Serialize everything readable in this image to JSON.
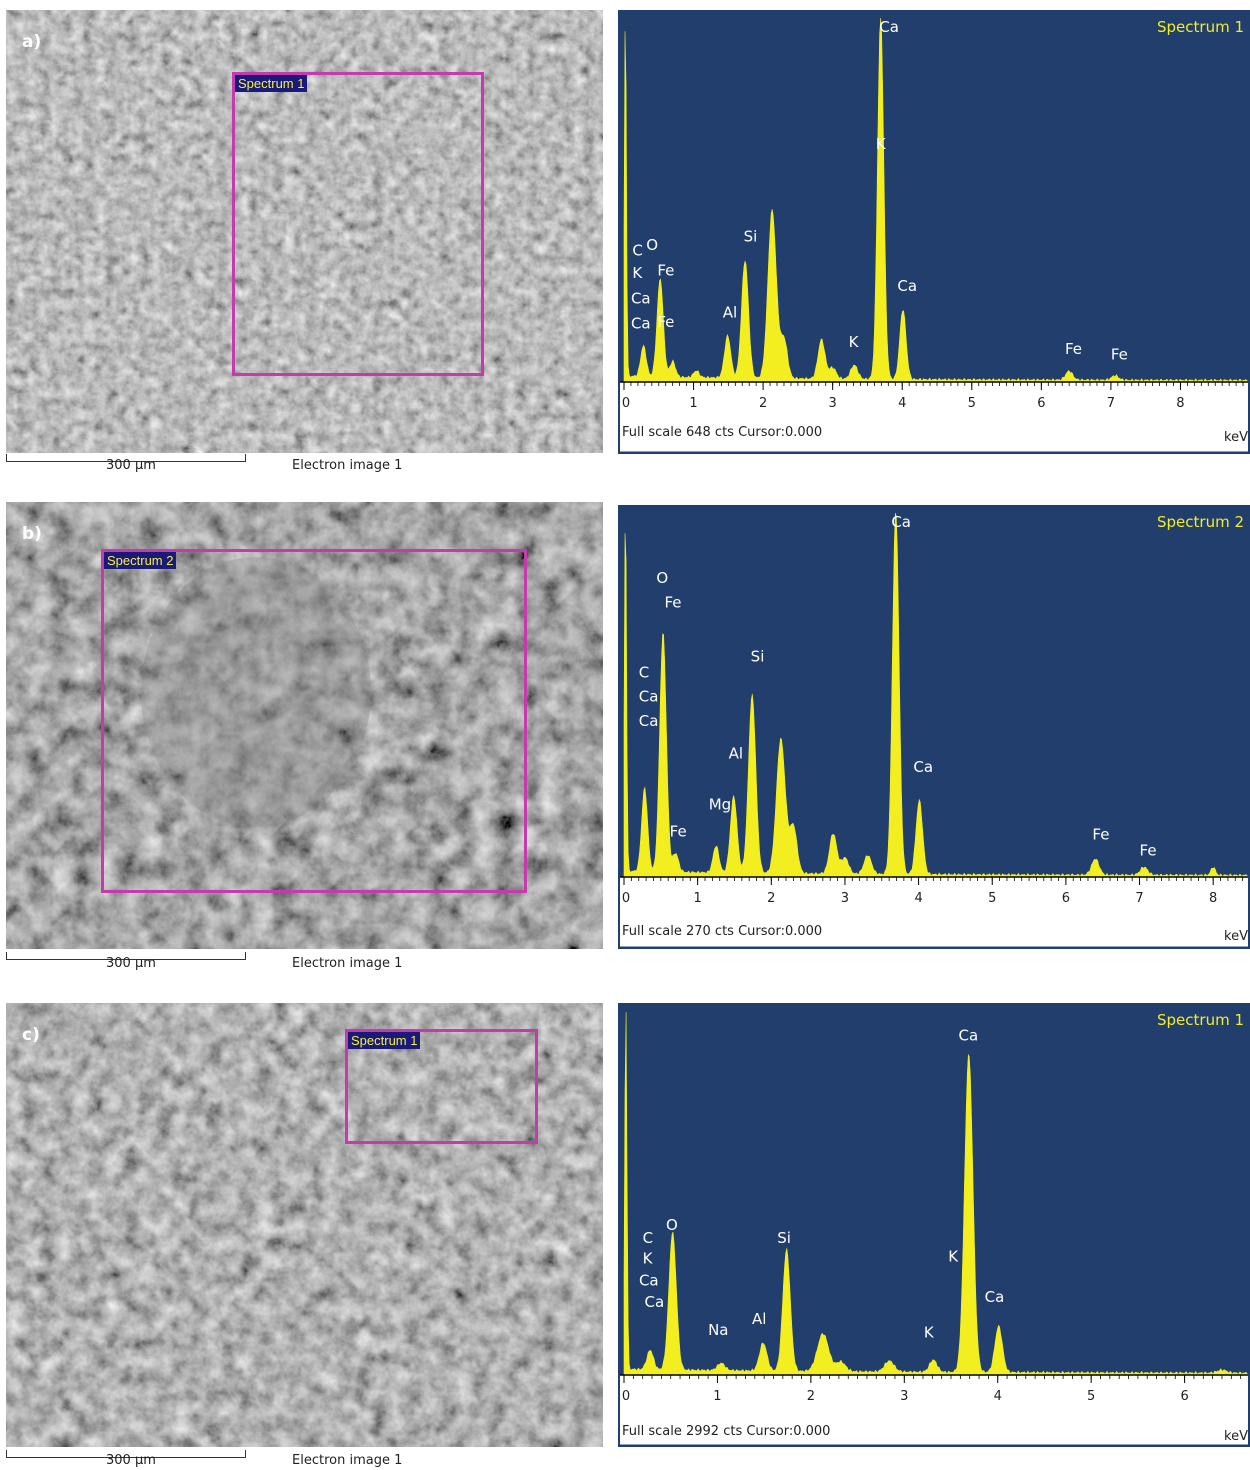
{
  "panels": [
    {
      "letter": "a)",
      "box_label": "Spectrum 1",
      "scale_label": "300 µm",
      "image_label": "Electron image 1"
    },
    {
      "letter": "b)",
      "box_label": "Spectrum 2",
      "scale_label": "300 µm",
      "image_label": "Electron image 1"
    },
    {
      "letter": "c)",
      "box_label": "Spectrum 1",
      "scale_label": "300 µm",
      "image_label": "Electron image 1"
    }
  ],
  "colors": {
    "spectrum_bg": "#213e6d",
    "spectrum_fill": "#f2ee1f",
    "roi_box": "#c23cb0",
    "spectrum_title": "#f2ee1f"
  },
  "chart_data": [
    {
      "type": "area",
      "title": "Spectrum 1",
      "footer": "Full scale 648 cts Cursor:0.000",
      "xunit": "keV",
      "xlim": [
        0,
        9
      ],
      "ylim": [
        0,
        648
      ],
      "xticks": [
        0,
        1,
        2,
        3,
        4,
        5,
        6,
        7,
        8
      ],
      "peaks": [
        {
          "x": 0.02,
          "y": 648,
          "w": 0.015
        },
        {
          "x": 0.28,
          "y": 55,
          "w": 0.04
        },
        {
          "x": 0.52,
          "y": 175,
          "w": 0.045
        },
        {
          "x": 0.7,
          "y": 28,
          "w": 0.04
        },
        {
          "x": 1.04,
          "y": 12,
          "w": 0.04
        },
        {
          "x": 1.49,
          "y": 75,
          "w": 0.045
        },
        {
          "x": 1.74,
          "y": 210,
          "w": 0.05
        },
        {
          "x": 2.13,
          "y": 300,
          "w": 0.06
        },
        {
          "x": 2.3,
          "y": 70,
          "w": 0.05
        },
        {
          "x": 2.84,
          "y": 70,
          "w": 0.05
        },
        {
          "x": 3.0,
          "y": 20,
          "w": 0.05
        },
        {
          "x": 3.31,
          "y": 25,
          "w": 0.05
        },
        {
          "x": 3.69,
          "y": 648,
          "w": 0.045
        },
        {
          "x": 4.01,
          "y": 125,
          "w": 0.045
        },
        {
          "x": 6.4,
          "y": 16,
          "w": 0.05
        },
        {
          "x": 7.06,
          "y": 8,
          "w": 0.05
        }
      ],
      "labels": [
        {
          "text": "C",
          "x": 0.12,
          "y": 225
        },
        {
          "text": "O",
          "x": 0.32,
          "y": 235
        },
        {
          "text": "K",
          "x": 0.12,
          "y": 185
        },
        {
          "text": "Fe",
          "x": 0.48,
          "y": 190
        },
        {
          "text": "Ca",
          "x": 0.1,
          "y": 140
        },
        {
          "text": "Ca",
          "x": 0.1,
          "y": 95
        },
        {
          "text": "Fe",
          "x": 0.48,
          "y": 98
        },
        {
          "text": "Al",
          "x": 1.42,
          "y": 115
        },
        {
          "text": "Si",
          "x": 1.72,
          "y": 250
        },
        {
          "text": "K",
          "x": 3.23,
          "y": 62
        },
        {
          "text": "K",
          "x": 3.62,
          "y": 415
        },
        {
          "text": "Ca",
          "x": 3.93,
          "y": 162
        },
        {
          "text": "Ca",
          "x": 3.67,
          "y": 700
        },
        {
          "text": "Fe",
          "x": 6.34,
          "y": 50
        },
        {
          "text": "Fe",
          "x": 7.0,
          "y": 40
        }
      ]
    },
    {
      "type": "area",
      "title": "Spectrum 2",
      "footer": "Full scale 270 cts Cursor:0.000",
      "xunit": "keV",
      "xlim": [
        0,
        8.5
      ],
      "ylim": [
        0,
        270
      ],
      "xticks": [
        0,
        1,
        2,
        3,
        4,
        5,
        6,
        7,
        8
      ],
      "peaks": [
        {
          "x": 0.02,
          "y": 270,
          "w": 0.015
        },
        {
          "x": 0.28,
          "y": 62,
          "w": 0.04
        },
        {
          "x": 0.53,
          "y": 178,
          "w": 0.045
        },
        {
          "x": 0.7,
          "y": 14,
          "w": 0.04
        },
        {
          "x": 1.25,
          "y": 20,
          "w": 0.04
        },
        {
          "x": 1.49,
          "y": 57,
          "w": 0.045
        },
        {
          "x": 1.74,
          "y": 132,
          "w": 0.05
        },
        {
          "x": 2.13,
          "y": 100,
          "w": 0.06
        },
        {
          "x": 2.3,
          "y": 35,
          "w": 0.05
        },
        {
          "x": 2.84,
          "y": 30,
          "w": 0.05
        },
        {
          "x": 3.0,
          "y": 12,
          "w": 0.05
        },
        {
          "x": 3.31,
          "y": 14,
          "w": 0.05
        },
        {
          "x": 3.69,
          "y": 270,
          "w": 0.045
        },
        {
          "x": 4.01,
          "y": 55,
          "w": 0.045
        },
        {
          "x": 6.4,
          "y": 12,
          "w": 0.05
        },
        {
          "x": 7.06,
          "y": 6,
          "w": 0.05
        },
        {
          "x": 8.0,
          "y": 6,
          "w": 0.03
        }
      ],
      "labels": [
        {
          "text": "O",
          "x": 0.44,
          "y": 218
        },
        {
          "text": "Fe",
          "x": 0.55,
          "y": 200
        },
        {
          "text": "C",
          "x": 0.2,
          "y": 148
        },
        {
          "text": "Si",
          "x": 1.72,
          "y": 160
        },
        {
          "text": "Ca",
          "x": 0.2,
          "y": 130
        },
        {
          "text": "Ca",
          "x": 0.2,
          "y": 112
        },
        {
          "text": "Al",
          "x": 1.42,
          "y": 88
        },
        {
          "text": "Ca",
          "x": 3.93,
          "y": 78
        },
        {
          "text": "Mg",
          "x": 1.15,
          "y": 50
        },
        {
          "text": "Fe",
          "x": 0.62,
          "y": 30
        },
        {
          "text": "Fe",
          "x": 6.36,
          "y": 28
        },
        {
          "text": "Fe",
          "x": 7.0,
          "y": 16
        },
        {
          "text": "Ca",
          "x": 3.63,
          "y": 300
        }
      ]
    },
    {
      "type": "area",
      "title": "Spectrum 1",
      "footer": "Full scale 2992 cts Cursor:0.000",
      "xunit": "keV",
      "xlim": [
        0,
        6.7
      ],
      "ylim": [
        0,
        2992
      ],
      "xticks": [
        0,
        1,
        2,
        3,
        4,
        5,
        6
      ],
      "peaks": [
        {
          "x": 0.02,
          "y": 2992,
          "w": 0.012
        },
        {
          "x": 0.28,
          "y": 160,
          "w": 0.035
        },
        {
          "x": 0.52,
          "y": 1130,
          "w": 0.04
        },
        {
          "x": 1.04,
          "y": 60,
          "w": 0.04
        },
        {
          "x": 1.49,
          "y": 230,
          "w": 0.04
        },
        {
          "x": 1.74,
          "y": 1000,
          "w": 0.04
        },
        {
          "x": 2.13,
          "y": 310,
          "w": 0.06
        },
        {
          "x": 2.32,
          "y": 80,
          "w": 0.05
        },
        {
          "x": 2.84,
          "y": 90,
          "w": 0.05
        },
        {
          "x": 3.31,
          "y": 100,
          "w": 0.04
        },
        {
          "x": 3.69,
          "y": 2620,
          "w": 0.045
        },
        {
          "x": 4.01,
          "y": 380,
          "w": 0.04
        },
        {
          "x": 6.4,
          "y": 25,
          "w": 0.05
        }
      ],
      "labels": [
        {
          "text": "Ca",
          "x": 3.58,
          "y": 2750
        },
        {
          "text": "O",
          "x": 0.45,
          "y": 1190
        },
        {
          "text": "C",
          "x": 0.2,
          "y": 1085
        },
        {
          "text": "Si",
          "x": 1.64,
          "y": 1085
        },
        {
          "text": "K",
          "x": 0.2,
          "y": 915
        },
        {
          "text": "K",
          "x": 3.47,
          "y": 935
        },
        {
          "text": "Ca",
          "x": 0.16,
          "y": 735
        },
        {
          "text": "Ca",
          "x": 0.22,
          "y": 560
        },
        {
          "text": "Ca",
          "x": 3.86,
          "y": 600
        },
        {
          "text": "Al",
          "x": 1.37,
          "y": 420
        },
        {
          "text": "Na",
          "x": 0.9,
          "y": 330
        },
        {
          "text": "K",
          "x": 3.21,
          "y": 310
        }
      ]
    }
  ]
}
